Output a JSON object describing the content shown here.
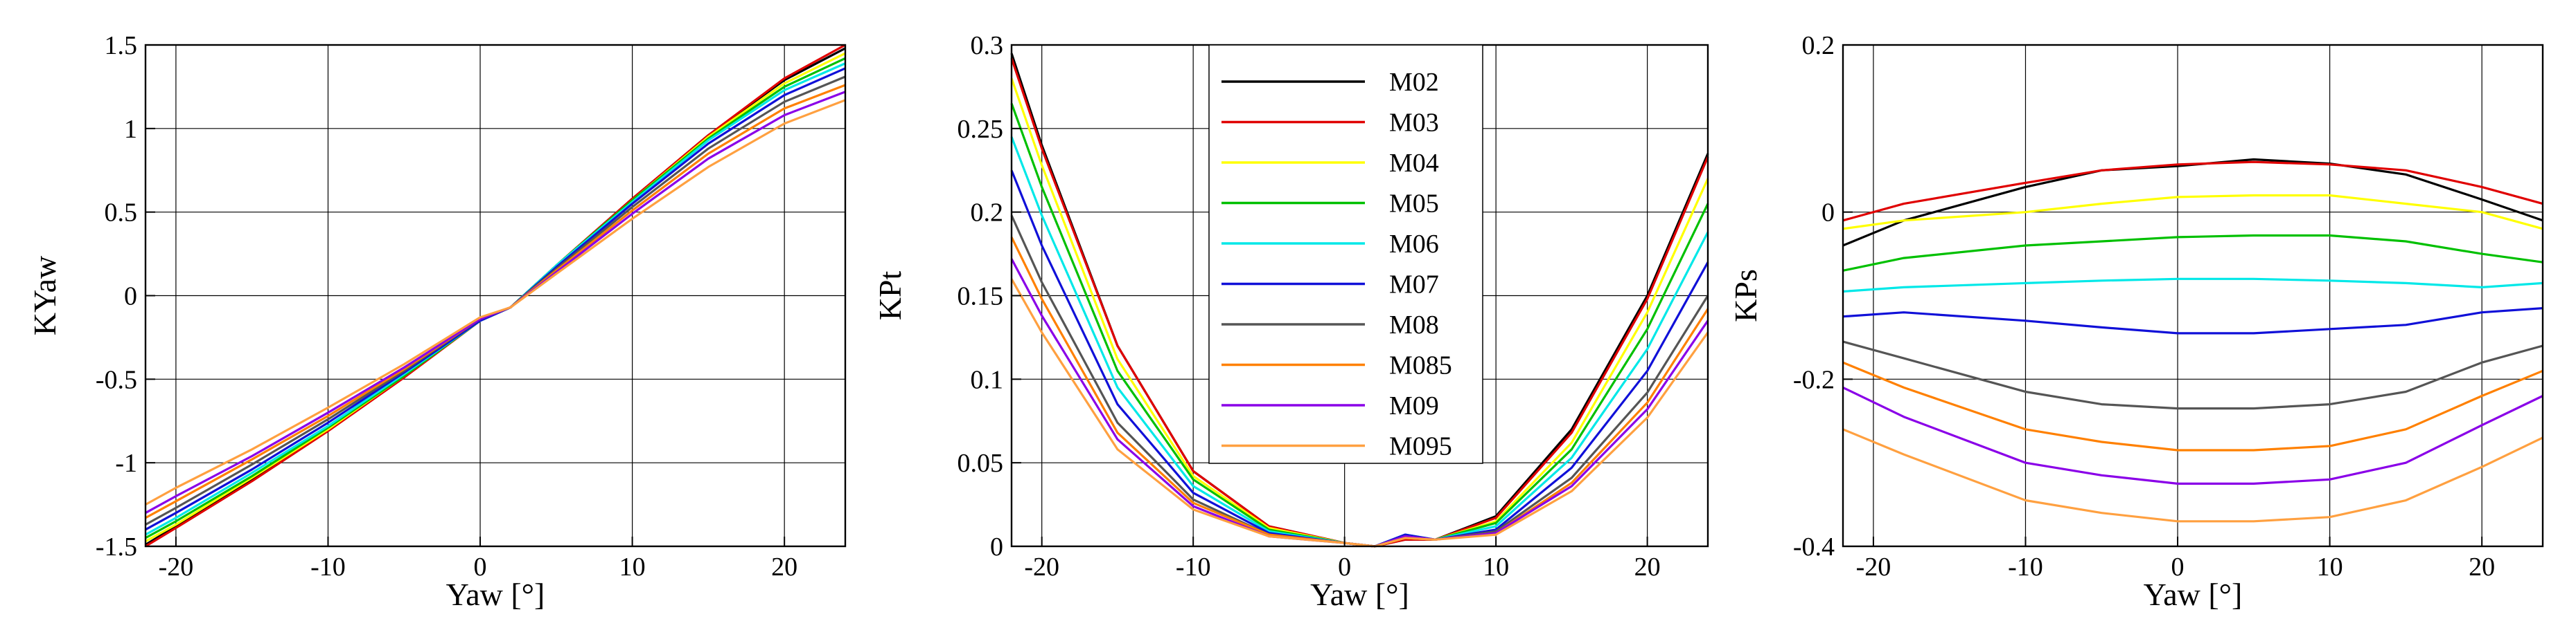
{
  "chart_data": [
    {
      "type": "line",
      "title": "",
      "xlabel": "Yaw [°]",
      "ylabel": "KYaw",
      "xlim": [
        -22,
        24
      ],
      "ylim": [
        -1.5,
        1.5
      ],
      "xticks": [
        -20,
        -10,
        0,
        10,
        20
      ],
      "xtick_labels": [
        "-20",
        "-10",
        "0",
        "10",
        "20"
      ],
      "yticks": [
        -1.5,
        -1,
        -0.5,
        0,
        0.5,
        1,
        1.5
      ],
      "ytick_labels": [
        "-1.5",
        "-1",
        "-0.5",
        "0",
        "0.5",
        "1",
        "1.5"
      ],
      "grid": true,
      "x": [
        -22,
        -20,
        -15,
        -10,
        -5,
        0,
        2,
        5,
        10,
        15,
        20,
        24
      ],
      "series": [
        {
          "name": "M02",
          "values": [
            -1.49,
            -1.38,
            -1.1,
            -0.8,
            -0.48,
            -0.15,
            -0.07,
            0.18,
            0.58,
            0.96,
            1.29,
            1.48
          ]
        },
        {
          "name": "M03",
          "values": [
            -1.5,
            -1.39,
            -1.11,
            -0.81,
            -0.49,
            -0.15,
            -0.07,
            0.18,
            0.58,
            0.96,
            1.3,
            1.5
          ]
        },
        {
          "name": "M04",
          "values": [
            -1.47,
            -1.37,
            -1.09,
            -0.8,
            -0.48,
            -0.15,
            -0.07,
            0.18,
            0.57,
            0.95,
            1.27,
            1.45
          ]
        },
        {
          "name": "M05",
          "values": [
            -1.45,
            -1.35,
            -1.08,
            -0.79,
            -0.48,
            -0.15,
            -0.07,
            0.18,
            0.57,
            0.94,
            1.25,
            1.42
          ]
        },
        {
          "name": "M06",
          "values": [
            -1.43,
            -1.33,
            -1.06,
            -0.78,
            -0.47,
            -0.15,
            -0.07,
            0.18,
            0.56,
            0.93,
            1.23,
            1.39
          ]
        },
        {
          "name": "M07",
          "values": [
            -1.4,
            -1.3,
            -1.04,
            -0.76,
            -0.46,
            -0.15,
            -0.07,
            0.17,
            0.55,
            0.91,
            1.2,
            1.36
          ]
        },
        {
          "name": "M08",
          "values": [
            -1.37,
            -1.27,
            -1.01,
            -0.74,
            -0.45,
            -0.14,
            -0.07,
            0.16,
            0.53,
            0.88,
            1.16,
            1.31
          ]
        },
        {
          "name": "M085",
          "values": [
            -1.33,
            -1.23,
            -0.98,
            -0.72,
            -0.44,
            -0.14,
            -0.07,
            0.15,
            0.51,
            0.85,
            1.12,
            1.26
          ]
        },
        {
          "name": "M09",
          "values": [
            -1.3,
            -1.2,
            -0.96,
            -0.7,
            -0.43,
            -0.14,
            -0.07,
            0.14,
            0.49,
            0.82,
            1.08,
            1.22
          ]
        },
        {
          "name": "M095",
          "values": [
            -1.25,
            -1.15,
            -0.92,
            -0.67,
            -0.41,
            -0.13,
            -0.07,
            0.13,
            0.46,
            0.77,
            1.03,
            1.17
          ]
        }
      ]
    },
    {
      "type": "line",
      "title": "",
      "xlabel": "Yaw [°]",
      "ylabel": "KPt",
      "xlim": [
        -22,
        24
      ],
      "ylim": [
        0,
        0.3
      ],
      "xticks": [
        -20,
        -10,
        0,
        10,
        20
      ],
      "xtick_labels": [
        "-20",
        "-10",
        "0",
        "10",
        "20"
      ],
      "yticks": [
        0,
        0.05,
        0.1,
        0.15,
        0.2,
        0.25,
        0.3
      ],
      "ytick_labels": [
        "0",
        "0.05",
        "0.1",
        "0.15",
        "0.2",
        "0.25",
        "0.3"
      ],
      "grid": true,
      "x": [
        -22,
        -20,
        -15,
        -10,
        -5,
        0,
        2,
        4,
        6,
        10,
        15,
        20,
        24
      ],
      "series": [
        {
          "name": "M02",
          "values": [
            0.295,
            0.24,
            0.12,
            0.045,
            0.012,
            0.002,
            0.0,
            0.004,
            0.004,
            0.018,
            0.07,
            0.15,
            0.235
          ]
        },
        {
          "name": "M03",
          "values": [
            0.292,
            0.238,
            0.12,
            0.045,
            0.012,
            0.002,
            0.0,
            0.004,
            0.004,
            0.017,
            0.068,
            0.148,
            0.233
          ]
        },
        {
          "name": "M04",
          "values": [
            0.28,
            0.228,
            0.112,
            0.042,
            0.011,
            0.002,
            0.0,
            0.005,
            0.004,
            0.015,
            0.062,
            0.14,
            0.22
          ]
        },
        {
          "name": "M05",
          "values": [
            0.265,
            0.215,
            0.105,
            0.04,
            0.01,
            0.002,
            0.0,
            0.006,
            0.004,
            0.014,
            0.058,
            0.13,
            0.205
          ]
        },
        {
          "name": "M06",
          "values": [
            0.245,
            0.198,
            0.095,
            0.036,
            0.009,
            0.002,
            0.0,
            0.007,
            0.004,
            0.012,
            0.053,
            0.118,
            0.188
          ]
        },
        {
          "name": "M07",
          "values": [
            0.225,
            0.18,
            0.085,
            0.032,
            0.008,
            0.002,
            0.0,
            0.007,
            0.004,
            0.01,
            0.047,
            0.105,
            0.17
          ]
        },
        {
          "name": "M08",
          "values": [
            0.198,
            0.158,
            0.074,
            0.028,
            0.007,
            0.002,
            0.0,
            0.006,
            0.004,
            0.009,
            0.041,
            0.092,
            0.15
          ]
        },
        {
          "name": "M085",
          "values": [
            0.185,
            0.148,
            0.068,
            0.026,
            0.007,
            0.002,
            0.0,
            0.006,
            0.004,
            0.008,
            0.038,
            0.086,
            0.142
          ]
        },
        {
          "name": "M09",
          "values": [
            0.172,
            0.138,
            0.064,
            0.024,
            0.006,
            0.002,
            0.0,
            0.006,
            0.004,
            0.008,
            0.036,
            0.082,
            0.135
          ]
        },
        {
          "name": "M095",
          "values": [
            0.16,
            0.128,
            0.058,
            0.022,
            0.006,
            0.002,
            0.0,
            0.005,
            0.004,
            0.007,
            0.033,
            0.077,
            0.128
          ]
        }
      ]
    },
    {
      "type": "line",
      "title": "",
      "xlabel": "Yaw [°]",
      "ylabel": "KPs",
      "xlim": [
        -22,
        24
      ],
      "ylim": [
        -0.4,
        0.2
      ],
      "xticks": [
        -20,
        -10,
        0,
        10,
        20
      ],
      "xtick_labels": [
        "-20",
        "-10",
        "0",
        "10",
        "20"
      ],
      "yticks": [
        -0.4,
        -0.2,
        0,
        0.2
      ],
      "ytick_labels": [
        "-0.4",
        "-0.2",
        "0",
        "0.2"
      ],
      "grid": true,
      "x": [
        -22,
        -18,
        -10,
        -5,
        0,
        5,
        10,
        15,
        20,
        24
      ],
      "series": [
        {
          "name": "M02",
          "values": [
            -0.04,
            -0.01,
            0.03,
            0.05,
            0.055,
            0.063,
            0.058,
            0.045,
            0.015,
            -0.01
          ]
        },
        {
          "name": "M03",
          "values": [
            -0.01,
            0.01,
            0.035,
            0.05,
            0.057,
            0.06,
            0.057,
            0.05,
            0.03,
            0.01
          ]
        },
        {
          "name": "M04",
          "values": [
            -0.02,
            -0.01,
            0.0,
            0.01,
            0.018,
            0.02,
            0.02,
            0.01,
            0.0,
            -0.02
          ]
        },
        {
          "name": "M05",
          "values": [
            -0.07,
            -0.055,
            -0.04,
            -0.035,
            -0.03,
            -0.028,
            -0.028,
            -0.035,
            -0.05,
            -0.06
          ]
        },
        {
          "name": "M06",
          "values": [
            -0.095,
            -0.09,
            -0.085,
            -0.082,
            -0.08,
            -0.08,
            -0.082,
            -0.085,
            -0.09,
            -0.085
          ]
        },
        {
          "name": "M07",
          "values": [
            -0.125,
            -0.12,
            -0.13,
            -0.138,
            -0.145,
            -0.145,
            -0.14,
            -0.135,
            -0.12,
            -0.115
          ]
        },
        {
          "name": "M08",
          "values": [
            -0.155,
            -0.175,
            -0.215,
            -0.23,
            -0.235,
            -0.235,
            -0.23,
            -0.215,
            -0.18,
            -0.16
          ]
        },
        {
          "name": "M085",
          "values": [
            -0.18,
            -0.21,
            -0.26,
            -0.275,
            -0.285,
            -0.285,
            -0.28,
            -0.26,
            -0.22,
            -0.19
          ]
        },
        {
          "name": "M09",
          "values": [
            -0.21,
            -0.245,
            -0.3,
            -0.315,
            -0.325,
            -0.325,
            -0.32,
            -0.3,
            -0.255,
            -0.22
          ]
        },
        {
          "name": "M095",
          "values": [
            -0.26,
            -0.29,
            -0.345,
            -0.36,
            -0.37,
            -0.37,
            -0.365,
            -0.345,
            -0.305,
            -0.27
          ]
        }
      ]
    }
  ],
  "legend": {
    "placement": "top-center of middle chart",
    "entries": [
      {
        "label": "M02",
        "color": "#000000"
      },
      {
        "label": "M03",
        "color": "#e00000"
      },
      {
        "label": "M04",
        "color": "#ffff00"
      },
      {
        "label": "M05",
        "color": "#00c000"
      },
      {
        "label": "M06",
        "color": "#00e8e8"
      },
      {
        "label": "M07",
        "color": "#1010d8"
      },
      {
        "label": "M08",
        "color": "#555555"
      },
      {
        "label": "M085",
        "color": "#ff8000"
      },
      {
        "label": "M09",
        "color": "#8a00e8"
      },
      {
        "label": "M095",
        "color": "#ffa040"
      }
    ]
  }
}
